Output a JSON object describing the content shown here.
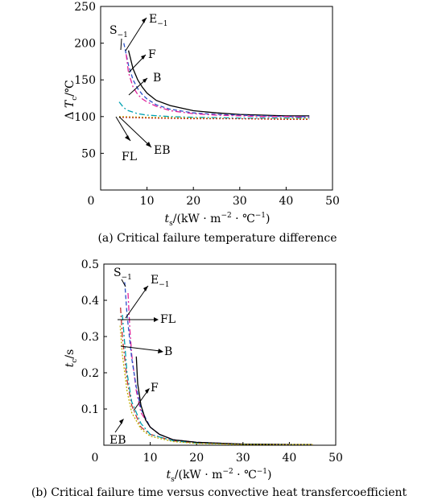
{
  "chart_data": [
    {
      "type": "line",
      "caption": "(a) Critical failure temperature difference",
      "ylabel": "ΔT_c/℃",
      "xlabel": "t_s/(kW·m^-2·℃^-1)",
      "xlim": [
        0,
        50
      ],
      "ylim": [
        0,
        250
      ],
      "xticks": [
        0,
        10,
        20,
        30,
        40,
        50
      ],
      "yticks": [
        50,
        100,
        150,
        200,
        250
      ],
      "xtick_labels": [
        "0",
        "10",
        "20",
        "30",
        "40",
        "50"
      ],
      "ytick_labels": [
        "50",
        "100",
        "150",
        "200",
        "250"
      ],
      "annotations": [
        "S−1",
        "E−1",
        "F",
        "B",
        "FL",
        "EB"
      ],
      "series": [
        {
          "name": "S−1",
          "color": "#000000",
          "dash": "solid",
          "x": [
            6,
            7,
            8,
            9,
            10,
            12,
            15,
            20,
            25,
            30,
            35,
            40,
            45
          ],
          "y": [
            190,
            165,
            150,
            140,
            132,
            122,
            115,
            108,
            105,
            103,
            102,
            101,
            101
          ]
        },
        {
          "name": "E−1",
          "color": "#2a50c8",
          "dash": "5,3",
          "x": [
            5,
            6,
            7,
            8,
            9,
            10,
            12,
            15,
            20,
            25,
            30,
            35,
            40,
            45
          ],
          "y": [
            200,
            170,
            150,
            138,
            130,
            124,
            116,
            110,
            105,
            103,
            102,
            101,
            100,
            100
          ]
        },
        {
          "name": "F",
          "color": "#e0209a",
          "dash": "7,3,2,3",
          "x": [
            5.5,
            6,
            7,
            8,
            9,
            10,
            12,
            15,
            20,
            25,
            30,
            35,
            40,
            45
          ],
          "y": [
            185,
            160,
            140,
            130,
            124,
            120,
            114,
            108,
            104,
            102,
            101,
            100,
            100,
            99
          ]
        },
        {
          "name": "B",
          "color": "#00a0b0",
          "dash": "7,3,2,3",
          "x": [
            4,
            5,
            6,
            8,
            10,
            15,
            20,
            30,
            40,
            45
          ],
          "y": [
            120,
            112,
            108,
            104,
            102,
            100,
            99,
            98,
            98,
            98
          ]
        },
        {
          "name": "FL",
          "color": "#c0b000",
          "dash": "2,2",
          "x": [
            4,
            10,
            20,
            30,
            40,
            45
          ],
          "y": [
            100,
            99,
            98,
            97,
            97,
            97
          ]
        },
        {
          "name": "EB",
          "color": "#c03030",
          "dash": "2,2",
          "x": [
            4,
            10,
            20,
            30,
            40,
            45
          ],
          "y": [
            99,
            98,
            97,
            97,
            96,
            96
          ]
        }
      ]
    },
    {
      "type": "line",
      "caption": "(b) Critical failure time versus convective heat transfercoefficient",
      "ylabel": "t_c/s",
      "xlabel": "t_s/(kW·m^-2·℃^-1)",
      "xlim": [
        0,
        50
      ],
      "ylim": [
        0,
        0.5
      ],
      "xticks": [
        0,
        10,
        20,
        30,
        40,
        50
      ],
      "yticks": [
        0.1,
        0.2,
        0.3,
        0.4,
        0.5
      ],
      "xtick_labels": [
        "0",
        "10",
        "20",
        "30",
        "40",
        "50"
      ],
      "ytick_labels": [
        "0.1",
        "0.2",
        "0.3",
        "0.4",
        "0.5"
      ],
      "annotations": [
        "S−1",
        "E−1",
        "FL",
        "B",
        "F",
        "EB"
      ],
      "series": [
        {
          "name": "S−1",
          "color": "#e0209a",
          "dash": "7,3,2,3",
          "x": [
            5.2,
            5.6,
            6,
            7,
            8,
            10,
            12,
            15,
            20,
            30,
            40,
            45
          ],
          "y": [
            0.42,
            0.32,
            0.25,
            0.15,
            0.09,
            0.05,
            0.03,
            0.015,
            0.008,
            0.003,
            0.002,
            0.002
          ]
        },
        {
          "name": "E−1",
          "color": "#2a50c8",
          "dash": "5,3",
          "x": [
            4.5,
            5,
            6,
            7,
            8,
            10,
            12,
            15,
            20,
            30,
            40,
            45
          ],
          "y": [
            0.45,
            0.36,
            0.24,
            0.16,
            0.1,
            0.05,
            0.03,
            0.015,
            0.008,
            0.003,
            0.002,
            0.002
          ]
        },
        {
          "name": "FL",
          "color": "#c03030",
          "dash": "7,3,2,3",
          "x": [
            3.6,
            4,
            5,
            6,
            8,
            10,
            15,
            20,
            30,
            40,
            45
          ],
          "y": [
            0.38,
            0.3,
            0.18,
            0.11,
            0.05,
            0.03,
            0.012,
            0.006,
            0.003,
            0.002,
            0.002
          ]
        },
        {
          "name": "B",
          "color": "#00a0b0",
          "dash": "7,3,2,3",
          "x": [
            4,
            4.5,
            5,
            6,
            8,
            10,
            15,
            20,
            30,
            40,
            45
          ],
          "y": [
            0.36,
            0.28,
            0.2,
            0.12,
            0.06,
            0.03,
            0.012,
            0.006,
            0.003,
            0.002,
            0.002
          ]
        },
        {
          "name": "F",
          "color": "#000000",
          "dash": "solid",
          "x": [
            7,
            7.3,
            8,
            9,
            10,
            12,
            15,
            20,
            30,
            40,
            45
          ],
          "y": [
            0.245,
            0.17,
            0.11,
            0.07,
            0.05,
            0.03,
            0.015,
            0.008,
            0.003,
            0.002,
            0.002
          ]
        },
        {
          "name": "EB",
          "color": "#c0b000",
          "dash": "2,2",
          "x": [
            3.5,
            4,
            5,
            6,
            8,
            10,
            15,
            20,
            30,
            40,
            45
          ],
          "y": [
            0.33,
            0.25,
            0.15,
            0.09,
            0.045,
            0.025,
            0.01,
            0.005,
            0.002,
            0.002,
            0.002
          ]
        }
      ]
    }
  ],
  "figure": {
    "caption_a": "(a) Critical failure temperature difference",
    "caption_b": "(b) Critical failure time versus convective heat transfercoefficient"
  }
}
